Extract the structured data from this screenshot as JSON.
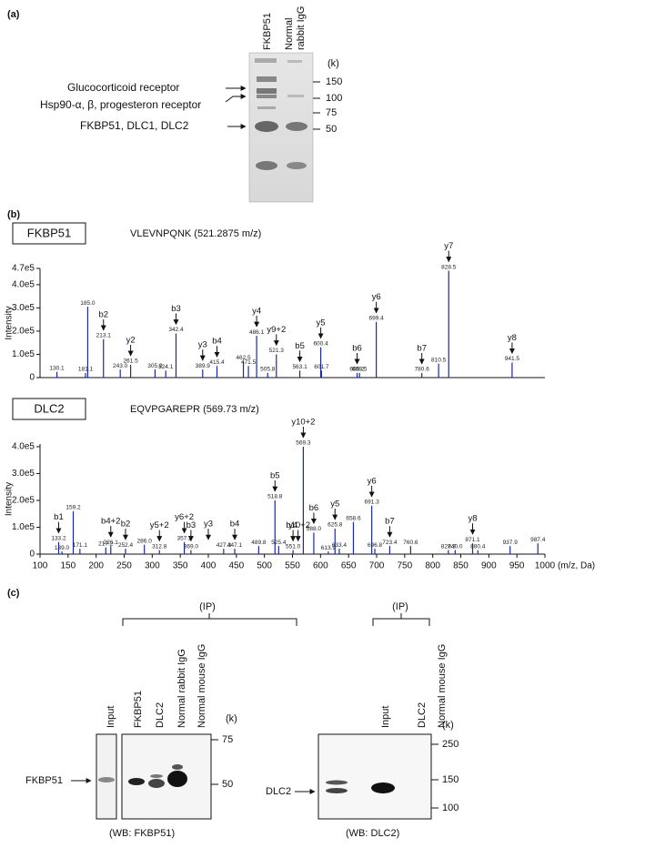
{
  "panel_a": {
    "label": "(a)",
    "lanes": [
      "FKBP51",
      [
        "Normal",
        "rabbit IgG"
      ]
    ],
    "unit": "(k)",
    "markers": [
      150,
      100,
      75,
      50
    ],
    "annotations": [
      "Glucocorticoid receptor",
      "Hsp90-α, β, progesteron receptor",
      "FKBP51, DLC1, DLC2"
    ]
  },
  "panel_b_label": "(b)",
  "chart_data": [
    {
      "type": "spectrum",
      "title": "FKBP51",
      "subtitle": "VLEVNPQNK (521.2875 m/z)",
      "y_label": "Intensity",
      "color": "#1a2a9c",
      "xlim": [
        100,
        1000
      ],
      "ylim": [
        0,
        470000
      ],
      "yticks": [
        0,
        {
          "value": 100000,
          "label": "1.0e5"
        },
        {
          "value": 200000,
          "label": "2.0e5"
        },
        {
          "value": 300000,
          "label": "3.0e5"
        },
        {
          "value": 400000,
          "label": "4.0e5"
        },
        {
          "value": 470000,
          "label": "4.7e5"
        }
      ],
      "x": [
        130.1,
        181.1,
        185.0,
        213.1,
        243.0,
        261.5,
        305.0,
        324.1,
        342.4,
        389.9,
        415.4,
        462.5,
        471.5,
        486.1,
        505.8,
        521.3,
        563.1,
        600.4,
        601.7,
        665.2,
        669.5,
        699.4,
        780.6,
        810.5,
        828.5,
        941.5
      ],
      "x_labels": [
        "130.1",
        "181.1",
        "185.0",
        "213.1",
        "243.0",
        "261.5",
        "305.0",
        "324.1",
        "342.4",
        "389.9",
        "415.4",
        "462.5",
        "471.5",
        "486.1",
        "505.8",
        "521.3",
        "563.1",
        "600.4",
        "601.7",
        "665.2",
        "669.5",
        "699.4",
        "780.6",
        "810.5",
        "828.5",
        "941.5"
      ],
      "values": [
        25000,
        20000,
        305000,
        165000,
        35000,
        55000,
        35000,
        30000,
        190000,
        35000,
        50000,
        70000,
        50000,
        180000,
        20000,
        100000,
        30000,
        130000,
        30000,
        20000,
        20000,
        240000,
        20000,
        60000,
        460000,
        65000
      ],
      "ions": [
        {
          "label": "b2",
          "x": 213.1
        },
        {
          "label": "y2",
          "x": 261.5
        },
        {
          "label": "b3",
          "x": 342.4
        },
        {
          "label": "y3",
          "x": 389.9
        },
        {
          "label": "b4",
          "x": 415.4
        },
        {
          "label": "y4",
          "x": 486.1
        },
        {
          "label": "y9+2",
          "x": 521.3
        },
        {
          "label": "b5",
          "x": 563.1
        },
        {
          "label": "y5",
          "x": 600.4
        },
        {
          "label": "b6",
          "x": 665.2
        },
        {
          "label": "y6",
          "x": 699.4
        },
        {
          "label": "b7",
          "x": 780.6
        },
        {
          "label": "y7",
          "x": 828.5
        },
        {
          "label": "y8",
          "x": 941.5
        }
      ]
    },
    {
      "type": "spectrum",
      "title": "DLC2",
      "subtitle": "EQVPGAREPR (569.73 m/z)",
      "y_label": "Intensity",
      "x_label": "(m/z, Da)",
      "color": "#1a2a9c",
      "xlim": [
        100,
        1000
      ],
      "xticks": [
        100,
        150,
        200,
        250,
        300,
        350,
        400,
        450,
        500,
        550,
        600,
        650,
        700,
        750,
        800,
        850,
        900,
        950,
        1000
      ],
      "ylim": [
        0,
        410000
      ],
      "yticks": [
        0,
        {
          "value": 100000,
          "label": "1.0e5"
        },
        {
          "value": 200000,
          "label": "2.0e5"
        },
        {
          "value": 300000,
          "label": "3.0e5"
        },
        {
          "value": 400000,
          "label": "4.0e5"
        }
      ],
      "x": [
        133.2,
        139.0,
        159.2,
        171.1,
        217.2,
        226.1,
        252.4,
        286.0,
        312.8,
        357.2,
        369.0,
        427.3,
        447.1,
        489.8,
        518.8,
        525.4,
        551.0,
        569.3,
        588.0,
        613.9,
        625.8,
        633.4,
        658.6,
        691.3,
        696.8,
        723.4,
        760.6,
        827.9,
        840.0,
        871.1,
        880.4,
        937.9,
        987.4
      ],
      "x_labels": [
        "133.2",
        "139.0",
        "159.2",
        "171.1",
        "217.2",
        "226.1",
        "252.4",
        "286.0",
        "312.8",
        "357.2",
        "369.0",
        "427.3",
        "447.1",
        "489.8",
        "518.8",
        "525.4",
        "551.0",
        "569.3",
        "588.0",
        "613.9",
        "625.8",
        "633.4",
        "658.6",
        "691.3",
        "696.8",
        "723.4",
        "760.6",
        "827.9",
        "840.0",
        "871.1",
        "880.4",
        "937.9",
        "987.4"
      ],
      "values": [
        45000,
        10000,
        160000,
        20000,
        25000,
        30000,
        20000,
        35000,
        15000,
        45000,
        15000,
        20000,
        20000,
        30000,
        200000,
        30000,
        15000,
        400000,
        80000,
        10000,
        95000,
        20000,
        120000,
        180000,
        20000,
        30000,
        30000,
        15000,
        15000,
        40000,
        15000,
        30000,
        40000
      ],
      "ions": [
        {
          "label": "b1",
          "x": 133.2
        },
        {
          "label": "b4+2",
          "x": 226.1
        },
        {
          "label": "b2",
          "x": 252.4
        },
        {
          "label": "y5+2",
          "x": 312.8
        },
        {
          "label": "y6+2",
          "x": 357.2
        },
        {
          "label": "b3",
          "x": 369.0
        },
        {
          "label": "y3",
          "x": 400
        },
        {
          "label": "b4",
          "x": 447.1
        },
        {
          "label": "b5",
          "x": 518.8
        },
        {
          "label": "y4",
          "x": 551.0
        },
        {
          "label": "b10+2",
          "x": 560
        },
        {
          "label": "y10+2",
          "x": 569.3
        },
        {
          "label": "b6",
          "x": 588.0
        },
        {
          "label": "y5",
          "x": 625.8
        },
        {
          "label": "y6",
          "x": 691.3
        },
        {
          "label": "b7",
          "x": 723.4
        },
        {
          "label": "y8",
          "x": 871.1
        }
      ]
    }
  ],
  "panel_c": {
    "label": "(c)",
    "left": {
      "ip": "(IP)",
      "lanes": [
        "Input",
        "FKBP51",
        "DLC2",
        "Normal rabbit IgG",
        "Normal mouse IgG"
      ],
      "unit": "(k)",
      "markers": [
        75,
        50
      ],
      "band": "FKBP51",
      "caption": "(WB: FKBP51)"
    },
    "right": {
      "ip": "(IP)",
      "lanes": [
        "Input",
        "DLC2",
        "Normal mouse IgG"
      ],
      "unit": "(k)",
      "markers": [
        250,
        150,
        100
      ],
      "band": "DLC2",
      "caption": "(WB: DLC2)"
    }
  }
}
